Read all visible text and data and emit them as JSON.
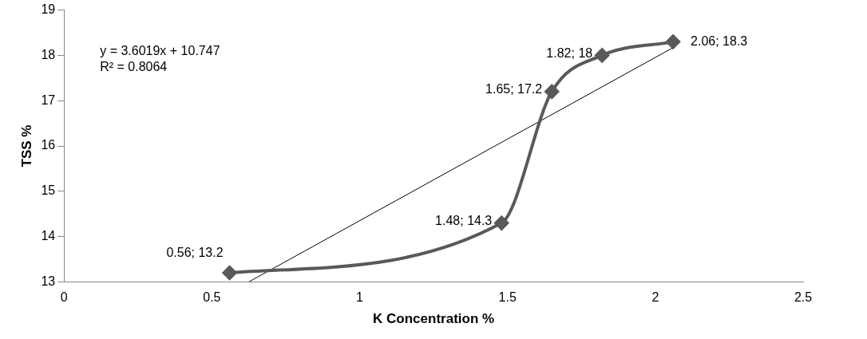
{
  "chart_data": {
    "type": "line",
    "xlabel": "K Concentration %",
    "ylabel": "TSS %",
    "x": [
      0.56,
      1.48,
      1.65,
      1.82,
      2.06
    ],
    "series": [
      {
        "color": "#595959",
        "values": [
          13.2,
          14.3,
          17.2,
          18,
          18.3
        ],
        "value_labels": [
          "0.56; 13.2",
          "1.48; 14.3",
          "1.65; 17.2",
          "1.82; 18",
          "2.06; 18.3"
        ],
        "marker": "diamond"
      },
      {
        "type": "line",
        "color": "#000000",
        "x": [
          0.625,
          2.06
        ],
        "values": [
          13.0,
          18.17
        ],
        "marker": "none"
      }
    ],
    "annotations": [
      "y = 3.6019x + 10.747",
      "R² = 0.8064"
    ],
    "xlim": [
      0,
      2.5
    ],
    "xticks": [
      0,
      0.5,
      1,
      1.5,
      2,
      2.5
    ],
    "ylim": [
      13,
      19
    ],
    "yticks": [
      13,
      14,
      15,
      16,
      17,
      18,
      19
    ],
    "grid": false,
    "legend": false
  }
}
